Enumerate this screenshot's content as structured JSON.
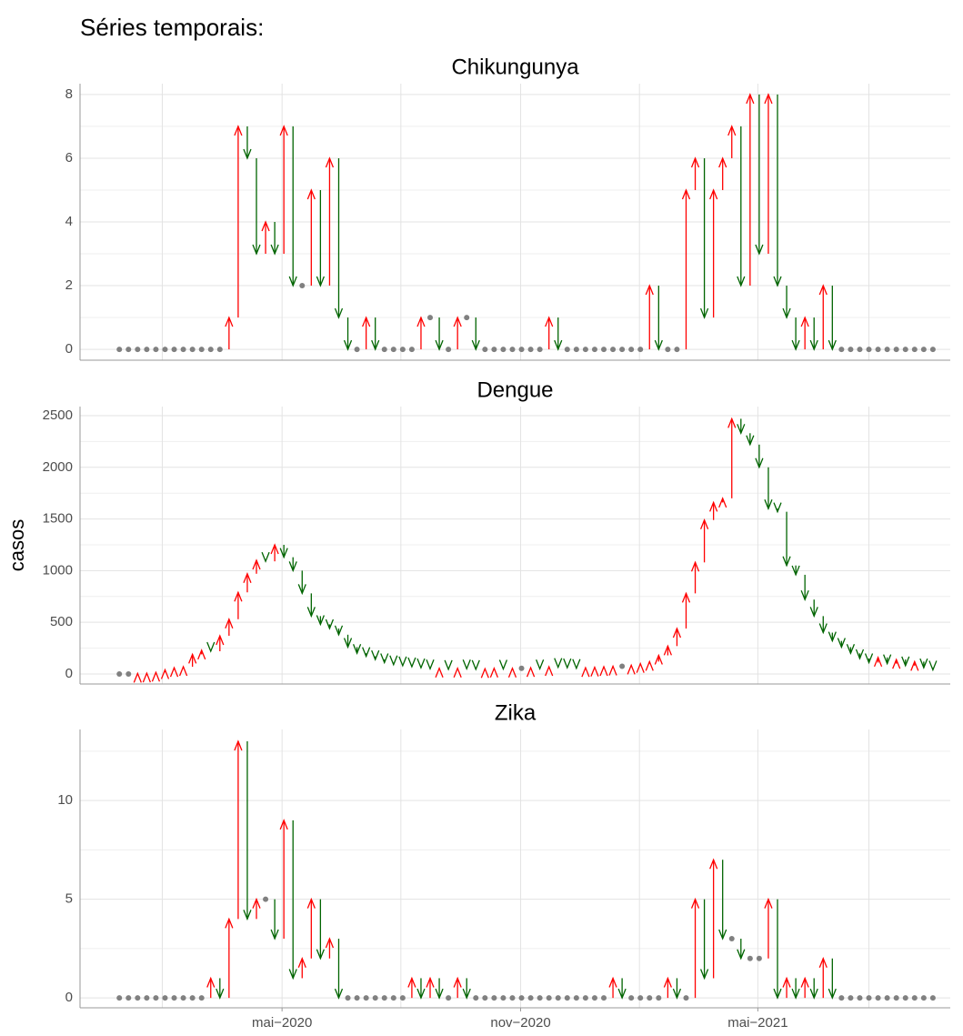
{
  "page_title": "Séries temporais:",
  "colors": {
    "up": "#ff0000",
    "down": "#006400",
    "same": "#808080"
  },
  "xaxis": {
    "x": [
      1,
      2,
      3,
      4,
      5,
      6,
      7,
      8,
      9,
      10,
      11,
      12,
      13,
      14,
      15,
      16,
      17,
      18,
      19,
      20,
      21,
      22,
      23,
      24,
      25,
      26,
      27,
      28,
      29,
      30,
      31,
      32,
      33,
      34,
      35,
      36,
      37,
      38,
      39,
      40,
      41,
      42,
      43,
      44,
      45,
      46,
      47,
      48,
      49,
      50,
      51,
      52,
      53,
      54,
      55,
      56,
      57,
      58,
      59,
      60,
      61,
      62,
      63,
      64,
      65,
      66,
      67,
      68,
      69,
      70,
      71,
      72,
      73,
      74,
      75,
      76,
      77,
      78,
      79,
      80,
      81,
      82,
      83,
      84,
      85,
      86,
      87,
      88,
      89,
      90
    ],
    "xlim": [
      -3.3,
      91.9
    ],
    "xticks": [
      {
        "value": 18.8,
        "label": "mai−2020"
      },
      {
        "value": 44.9,
        "label": "nov−2020"
      },
      {
        "value": 70.85,
        "label": "mai−2021"
      }
    ],
    "xminor": [
      5.7,
      31.8,
      57.9,
      83.0
    ]
  },
  "chart_data": [
    {
      "type": "arrow",
      "title": "Chikungunya",
      "ylim": [
        -0.34,
        8.34
      ],
      "yticks": [
        0,
        2,
        4,
        6,
        8
      ],
      "grid": true,
      "values": [
        0,
        0,
        0,
        0,
        0,
        0,
        0,
        0,
        0,
        0,
        0,
        0,
        1,
        7,
        6,
        3,
        4,
        3,
        7,
        2,
        2,
        5,
        2,
        6,
        1,
        0,
        0,
        1,
        0,
        0,
        0,
        0,
        0,
        1,
        1,
        0,
        0,
        1,
        1,
        0,
        0,
        0,
        0,
        0,
        0,
        0,
        0,
        1,
        0,
        0,
        0,
        0,
        0,
        0,
        0,
        0,
        0,
        0,
        2,
        0,
        0,
        0,
        5,
        6,
        1,
        5,
        6,
        7,
        2,
        8,
        3,
        8,
        2,
        1,
        0,
        1,
        0,
        2,
        0,
        0,
        0,
        0,
        0,
        0,
        0,
        0,
        0,
        0,
        0,
        0
      ]
    },
    {
      "type": "arrow",
      "title": "Dengue",
      "ylabel": "casos",
      "ylim": [
        -97,
        2588
      ],
      "yticks": [
        0,
        500,
        1000,
        1500,
        2000,
        2500
      ],
      "grid": true,
      "values": [
        0,
        0,
        5,
        8,
        15,
        40,
        60,
        70,
        190,
        230,
        220,
        370,
        530,
        790,
        970,
        1100,
        1090,
        1250,
        1130,
        1000,
        780,
        560,
        480,
        440,
        380,
        260,
        200,
        170,
        140,
        110,
        90,
        80,
        70,
        60,
        50,
        55,
        45,
        55,
        50,
        45,
        50,
        55,
        48,
        55,
        55,
        60,
        50,
        70,
        65,
        60,
        55,
        60,
        65,
        70,
        75,
        75,
        85,
        100,
        120,
        180,
        270,
        440,
        780,
        1080,
        1490,
        1660,
        1700,
        2470,
        2330,
        2220,
        2000,
        1600,
        1570,
        1050,
        960,
        720,
        560,
        400,
        320,
        260,
        200,
        150,
        110,
        160,
        100,
        140,
        80,
        120,
        60,
        40
      ]
    },
    {
      "type": "arrow",
      "title": "Zika",
      "ylim": [
        -0.5,
        13.6
      ],
      "yticks": [
        0,
        5,
        10
      ],
      "grid": true,
      "values": [
        0,
        0,
        0,
        0,
        0,
        0,
        0,
        0,
        0,
        0,
        1,
        0,
        4,
        13,
        4,
        5,
        5,
        3,
        9,
        1,
        2,
        5,
        2,
        3,
        0,
        0,
        0,
        0,
        0,
        0,
        0,
        0,
        1,
        0,
        1,
        0,
        0,
        1,
        0,
        0,
        0,
        0,
        0,
        0,
        0,
        0,
        0,
        0,
        0,
        0,
        0,
        0,
        0,
        0,
        1,
        0,
        0,
        0,
        0,
        0,
        1,
        0,
        0,
        5,
        1,
        7,
        3,
        3,
        2,
        2,
        2,
        5,
        0,
        1,
        0,
        1,
        0,
        2,
        0,
        0,
        0,
        0,
        0,
        0,
        0,
        0,
        0,
        0,
        0,
        0
      ]
    }
  ]
}
